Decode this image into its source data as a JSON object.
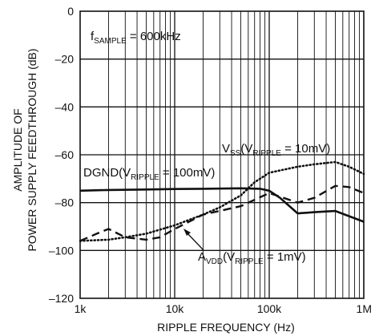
{
  "chart_data": {
    "type": "line",
    "title": "",
    "xlabel": "RIPPLE FREQUENCY (Hz)",
    "ylabel_lines": [
      "AMPLITUDE OF",
      "POWER SUPPLY FEEDTHROUGH (dB)"
    ],
    "x_scale": "log",
    "xlim": [
      1000,
      1000000
    ],
    "ylim": [
      -120,
      0
    ],
    "grid": true,
    "x_ticks": [
      {
        "value": 1000,
        "label": "1k"
      },
      {
        "value": 10000,
        "label": "10k"
      },
      {
        "value": 100000,
        "label": "100k"
      },
      {
        "value": 1000000,
        "label": "1M"
      }
    ],
    "y_ticks": [
      {
        "value": 0,
        "label": "0"
      },
      {
        "value": -20,
        "label": "–20"
      },
      {
        "value": -40,
        "label": "–40"
      },
      {
        "value": -60,
        "label": "–60"
      },
      {
        "value": -80,
        "label": "–80"
      },
      {
        "value": -100,
        "label": "–100"
      },
      {
        "value": -120,
        "label": "–120"
      }
    ],
    "annotations": {
      "fsample": {
        "main": "f",
        "sub": "SAMPLE",
        "rest": " = 600kHz"
      },
      "vss": {
        "main": "V",
        "sub1": "SS",
        "mid": "(V",
        "sub2": "RIPPLE",
        "rest": " = 10mV)"
      },
      "dgnd": {
        "main": "DGND(V",
        "sub": "RIPPLE",
        "rest": " = 100mV)"
      },
      "avdd": {
        "main": "A",
        "sub1": "VDD",
        "mid": "(V",
        "sub2": "RIPPLE",
        "rest": " = 1mV)"
      }
    },
    "series": [
      {
        "id": "dgnd",
        "style": "solid",
        "points": [
          [
            1000,
            -75
          ],
          [
            2000,
            -74.7
          ],
          [
            5000,
            -74.5
          ],
          [
            10000,
            -74.3
          ],
          [
            20000,
            -74.2
          ],
          [
            50000,
            -74
          ],
          [
            80000,
            -74.2
          ],
          [
            100000,
            -75
          ],
          [
            130000,
            -78
          ],
          [
            200000,
            -84.5
          ],
          [
            300000,
            -84
          ],
          [
            500000,
            -83.5
          ],
          [
            1000000,
            -88
          ]
        ]
      },
      {
        "id": "vss",
        "style": "dotted",
        "points": [
          [
            1000,
            -96
          ],
          [
            2000,
            -95.5
          ],
          [
            3000,
            -94.5
          ],
          [
            5000,
            -93
          ],
          [
            10000,
            -89.5
          ],
          [
            20000,
            -85
          ],
          [
            30000,
            -82
          ],
          [
            50000,
            -77
          ],
          [
            70000,
            -71.5
          ],
          [
            100000,
            -67.5
          ],
          [
            200000,
            -65
          ],
          [
            300000,
            -64
          ],
          [
            500000,
            -63
          ],
          [
            700000,
            -65
          ],
          [
            1000000,
            -68
          ]
        ]
      },
      {
        "id": "avdd",
        "style": "dashed",
        "points": [
          [
            1000,
            -96
          ],
          [
            1500,
            -93
          ],
          [
            2000,
            -91
          ],
          [
            3000,
            -94.5
          ],
          [
            5000,
            -95.5
          ],
          [
            7000,
            -94.5
          ],
          [
            10000,
            -91
          ],
          [
            20000,
            -85
          ],
          [
            50000,
            -81.5
          ],
          [
            100000,
            -76
          ],
          [
            200000,
            -80
          ],
          [
            300000,
            -78
          ],
          [
            500000,
            -73
          ],
          [
            700000,
            -73.5
          ],
          [
            1000000,
            -76
          ]
        ]
      }
    ]
  }
}
